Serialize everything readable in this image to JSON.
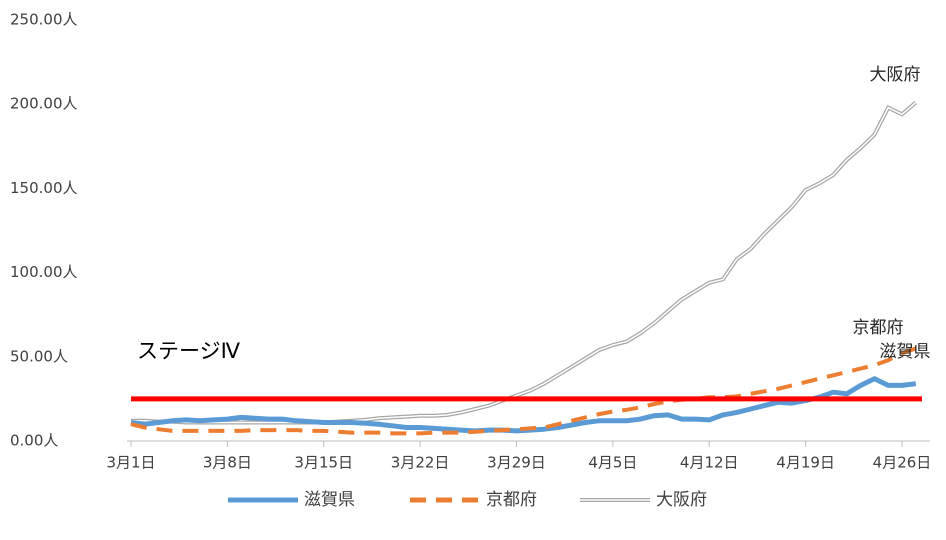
{
  "chart_data": {
    "type": "line",
    "categories": [
      "3月1日",
      null,
      null,
      null,
      null,
      null,
      null,
      "3月8日",
      null,
      null,
      null,
      null,
      null,
      null,
      "3月15日",
      null,
      null,
      null,
      null,
      null,
      null,
      "3月22日",
      null,
      null,
      null,
      null,
      null,
      null,
      "3月29日",
      null,
      null,
      null,
      null,
      null,
      null,
      "4月5日",
      null,
      null,
      null,
      null,
      null,
      null,
      "4月12日",
      null,
      null,
      null,
      null,
      null,
      null,
      "4月19日",
      null,
      null,
      null,
      null,
      null,
      null,
      "4月26日",
      null
    ],
    "series": [
      {
        "name": "滋賀県",
        "color": "#5b9bd5",
        "style": "solid",
        "values": [
          11,
          10,
          11,
          12,
          12.5,
          12,
          12.5,
          13,
          14,
          13.5,
          13,
          13,
          12,
          11.5,
          11,
          11,
          11,
          10.5,
          10,
          9,
          8,
          8,
          7.5,
          7,
          6.5,
          6,
          6.5,
          6.5,
          6,
          6.5,
          7,
          8,
          9.5,
          11,
          12,
          12,
          12,
          13,
          15,
          15.5,
          13,
          13,
          12.5,
          15.5,
          17,
          19,
          21,
          23,
          22.5,
          24,
          26,
          29,
          28,
          33,
          37,
          33,
          33,
          34
        ]
      },
      {
        "name": "京都府",
        "color": "#ed7d31",
        "style": "dashed",
        "values": [
          10,
          8,
          7,
          6,
          6,
          6,
          6,
          6,
          6,
          6.5,
          6.5,
          6.5,
          6.5,
          6,
          6,
          5.5,
          5,
          5,
          5,
          4.5,
          4.5,
          4.5,
          5,
          5,
          5,
          5.5,
          6,
          6.5,
          7,
          7.5,
          8,
          10,
          12,
          14,
          16,
          17.5,
          18.5,
          20,
          22,
          23.5,
          24.5,
          25,
          26,
          26,
          26.5,
          28,
          29.5,
          31,
          33,
          35,
          37,
          39,
          41,
          43,
          45,
          48,
          52,
          55
        ]
      },
      {
        "name": "大阪府",
        "color": "#a6a6a6",
        "style": "double",
        "values": [
          12,
          12,
          11.5,
          11.5,
          11,
          11,
          11,
          11,
          11,
          11,
          11,
          11,
          11,
          11,
          11,
          11.5,
          12,
          12.5,
          13.5,
          14,
          14.5,
          15,
          15,
          15.5,
          17,
          19,
          21,
          24,
          27,
          30,
          34,
          39,
          44,
          49,
          54,
          57,
          59,
          64,
          70,
          77,
          84,
          89,
          94,
          96,
          108,
          114,
          123,
          131,
          139,
          149,
          153,
          158,
          167,
          174,
          182,
          198,
          194,
          201
        ]
      }
    ],
    "ylim": [
      0,
      250
    ],
    "yticks": [
      {
        "value": 0,
        "label": "0.00人"
      },
      {
        "value": 50,
        "label": "50.00人"
      },
      {
        "value": 100,
        "label": "100.00人"
      },
      {
        "value": 150,
        "label": "150.00人"
      },
      {
        "value": 200,
        "label": "200.00人"
      },
      {
        "value": 250,
        "label": "250.00人"
      }
    ],
    "threshold": {
      "label": "ステージⅣ",
      "value": 25,
      "color": "#ff0000"
    },
    "legend": "bottom"
  }
}
